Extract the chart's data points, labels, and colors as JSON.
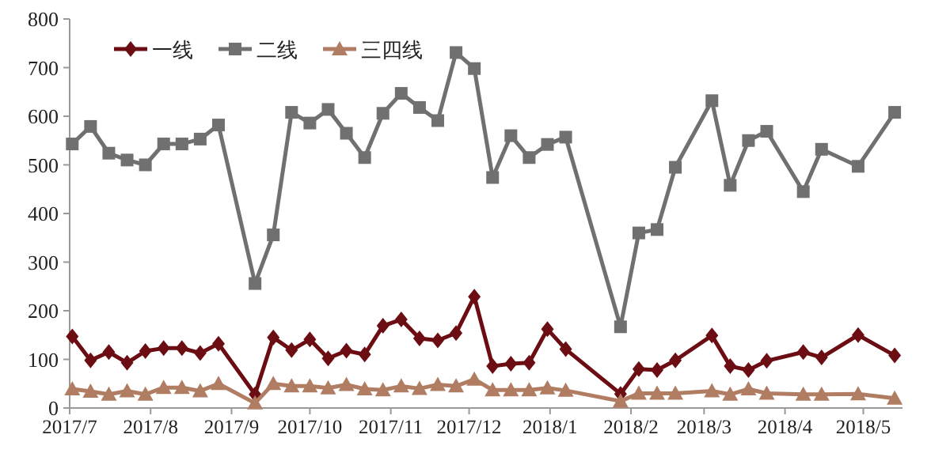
{
  "chart_data": {
    "type": "line",
    "legend": "top left",
    "grid": false,
    "line_style": "solid",
    "x": [
      "2017-07-02",
      "2017-07-09",
      "2017-07-16",
      "2017-07-23",
      "2017-07-30",
      "2017-08-06",
      "2017-08-13",
      "2017-08-20",
      "2017-08-27",
      "2017-09-10",
      "2017-09-17",
      "2017-09-24",
      "2017-10-01",
      "2017-10-08",
      "2017-10-15",
      "2017-10-22",
      "2017-10-29",
      "2017-11-05",
      "2017-11-12",
      "2017-11-19",
      "2017-11-26",
      "2017-12-03",
      "2017-12-10",
      "2017-12-17",
      "2017-12-24",
      "2017-12-31",
      "2018-01-07",
      "2018-01-28",
      "2018-02-04",
      "2018-02-11",
      "2018-02-18",
      "2018-03-04",
      "2018-03-11",
      "2018-03-18",
      "2018-03-25",
      "2018-04-08",
      "2018-04-15",
      "2018-04-29",
      "2018-05-13"
    ],
    "series": [
      {
        "name": "一线",
        "color": "#6b0d12",
        "marker": "diamond",
        "values": [
          147,
          98,
          115,
          93,
          117,
          123,
          123,
          113,
          132,
          28,
          145,
          119,
          141,
          102,
          118,
          110,
          169,
          182,
          143,
          139,
          154,
          229,
          86,
          91,
          93,
          162,
          121,
          29,
          80,
          78,
          98,
          149,
          86,
          78,
          97,
          115,
          104,
          150,
          108
        ]
      },
      {
        "name": "二线",
        "color": "#707070",
        "marker": "square",
        "values": [
          543,
          579,
          524,
          510,
          500,
          543,
          543,
          553,
          582,
          256,
          356,
          608,
          586,
          614,
          565,
          515,
          606,
          647,
          618,
          591,
          731,
          698,
          474,
          560,
          515,
          542,
          557,
          167,
          360,
          367,
          495,
          632,
          458,
          550,
          569,
          445,
          532,
          497,
          608
        ]
      },
      {
        "name": "三四线",
        "color": "#b07d62",
        "marker": "triangle",
        "values": [
          39,
          34,
          28,
          35,
          28,
          42,
          42,
          35,
          50,
          10,
          50,
          45,
          45,
          41,
          48,
          39,
          37,
          45,
          40,
          48,
          45,
          59,
          37,
          37,
          37,
          41,
          36,
          14,
          30,
          30,
          30,
          35,
          28,
          39,
          30,
          28,
          28,
          29,
          20
        ]
      }
    ],
    "xlim": [
      "2017-07-01",
      "2018-05-16"
    ],
    "xticks": [
      {
        "value": "2017-07-01",
        "label": "2017/7"
      },
      {
        "value": "2017-08-01",
        "label": "2017/8"
      },
      {
        "value": "2017-09-01",
        "label": "2017/9"
      },
      {
        "value": "2017-10-01",
        "label": "2017/10"
      },
      {
        "value": "2017-11-01",
        "label": "2017/11"
      },
      {
        "value": "2017-12-01",
        "label": "2017/12"
      },
      {
        "value": "2018-01-01",
        "label": "2018/1"
      },
      {
        "value": "2018-02-01",
        "label": "2018/2"
      },
      {
        "value": "2018-03-01",
        "label": "2018/3"
      },
      {
        "value": "2018-04-01",
        "label": "2018/4"
      },
      {
        "value": "2018-05-01",
        "label": "2018/5"
      }
    ],
    "ylim": [
      0,
      800
    ],
    "yticks": [
      0,
      100,
      200,
      300,
      400,
      500,
      600,
      700,
      800
    ]
  }
}
